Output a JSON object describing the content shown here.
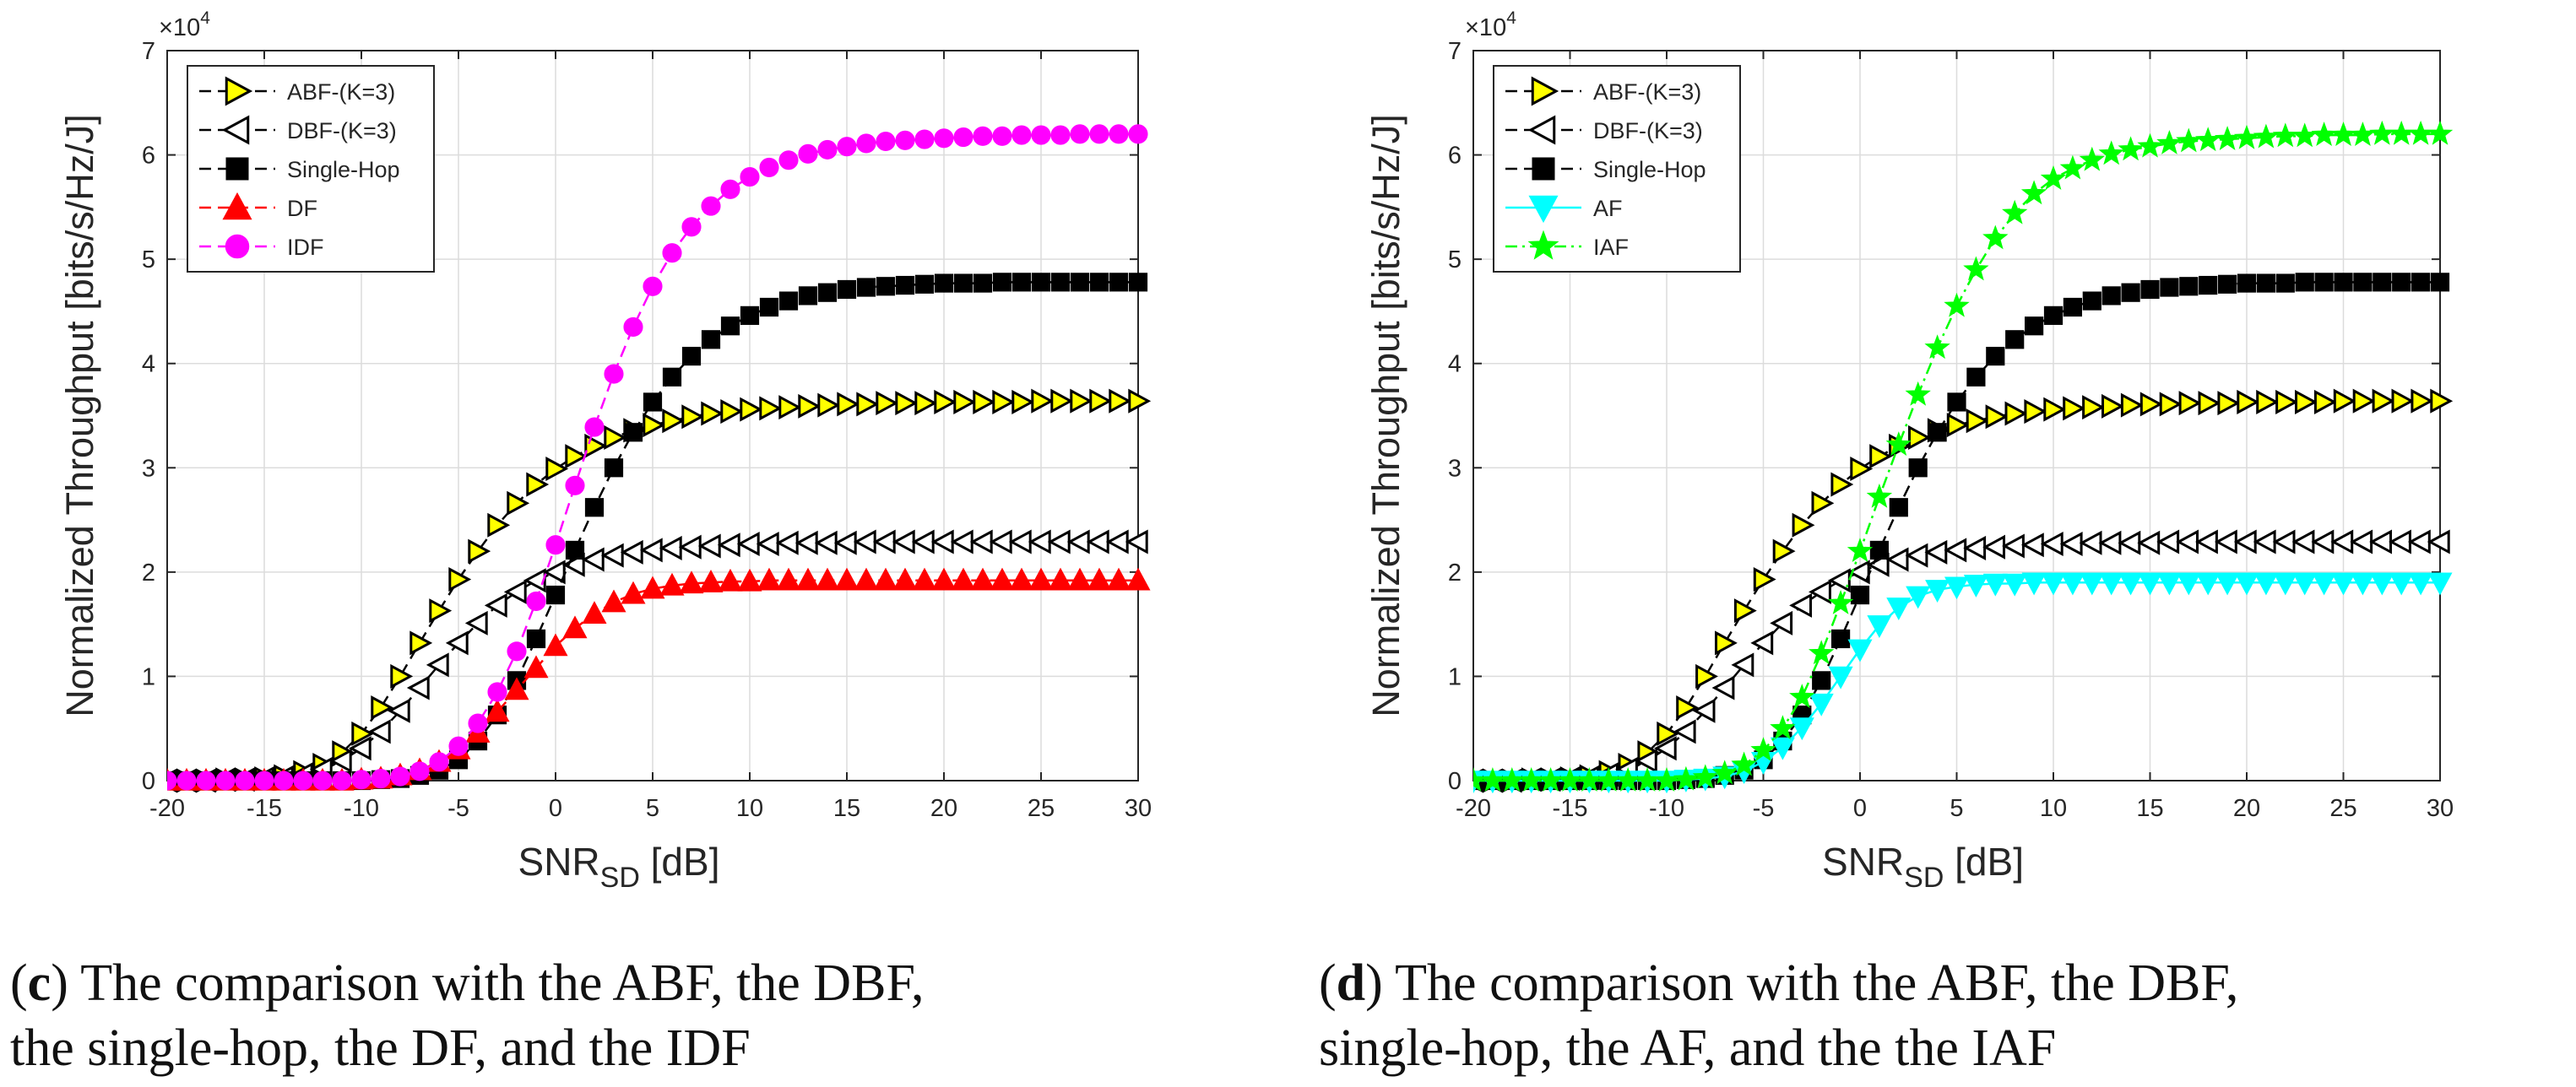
{
  "chart_data": [
    {
      "type": "line",
      "id": "c",
      "title": "",
      "xlabel_main": "SNR",
      "xlabel_sub": "SD",
      "xlabel_unit": "[dB]",
      "ylabel": "Normalized Throughput [bits/s/Hz/J]",
      "y_exponent_base": "×10",
      "y_exponent_power": "4",
      "xlim": [
        -20,
        30
      ],
      "ylim": [
        0,
        7
      ],
      "xticks": [
        "-20",
        "-15",
        "-10",
        "-5",
        "0",
        "5",
        "10",
        "15",
        "20",
        "25",
        "30"
      ],
      "yticks": [
        "0",
        "1",
        "2",
        "3",
        "4",
        "5",
        "6",
        "7"
      ],
      "grid": true,
      "legend_position": "top-left",
      "x": [
        -20,
        -19,
        -18,
        -17,
        -16,
        -15,
        -14,
        -13,
        -12,
        -11,
        -10,
        -9,
        -8,
        -7,
        -6,
        -5,
        -4,
        -3,
        -2,
        -1,
        0,
        1,
        2,
        3,
        4,
        5,
        6,
        7,
        8,
        9,
        10,
        11,
        12,
        13,
        14,
        15,
        16,
        17,
        18,
        19,
        20,
        21,
        22,
        23,
        24,
        25,
        26,
        27,
        28,
        29,
        30
      ],
      "series": [
        {
          "name": "ABF-(K=3)",
          "marker": "triangle-right",
          "color": "#ffff00",
          "line": "dash",
          "values": [
            0.0,
            0.0,
            0.0,
            0.01,
            0.01,
            0.02,
            0.04,
            0.08,
            0.15,
            0.27,
            0.45,
            0.7,
            1.0,
            1.32,
            1.63,
            1.93,
            2.2,
            2.45,
            2.66,
            2.84,
            2.99,
            3.11,
            3.21,
            3.29,
            3.36,
            3.41,
            3.45,
            3.49,
            3.52,
            3.54,
            3.56,
            3.57,
            3.58,
            3.59,
            3.6,
            3.61,
            3.61,
            3.62,
            3.62,
            3.62,
            3.63,
            3.63,
            3.63,
            3.63,
            3.63,
            3.64,
            3.64,
            3.64,
            3.64,
            3.64,
            3.64
          ]
        },
        {
          "name": "DBF-(K=3)",
          "marker": "triangle-left",
          "color": "#ffffff",
          "line": "dash",
          "values": [
            0.0,
            0.0,
            0.0,
            0.01,
            0.01,
            0.02,
            0.03,
            0.06,
            0.11,
            0.19,
            0.31,
            0.47,
            0.67,
            0.89,
            1.11,
            1.32,
            1.51,
            1.68,
            1.81,
            1.92,
            2.0,
            2.07,
            2.12,
            2.16,
            2.19,
            2.21,
            2.23,
            2.24,
            2.25,
            2.26,
            2.27,
            2.27,
            2.28,
            2.28,
            2.28,
            2.28,
            2.29,
            2.29,
            2.29,
            2.29,
            2.29,
            2.29,
            2.29,
            2.29,
            2.29,
            2.29,
            2.29,
            2.29,
            2.29,
            2.29,
            2.29
          ]
        },
        {
          "name": "Single-Hop",
          "marker": "square",
          "color": "#000000",
          "line": "dash",
          "values": [
            0.0,
            0.0,
            0.0,
            0.0,
            0.0,
            0.0,
            0.0,
            0.0,
            0.0,
            0.0,
            0.0,
            0.01,
            0.02,
            0.05,
            0.1,
            0.2,
            0.38,
            0.63,
            0.96,
            1.36,
            1.78,
            2.21,
            2.62,
            3.0,
            3.34,
            3.63,
            3.87,
            4.07,
            4.23,
            4.36,
            4.46,
            4.54,
            4.6,
            4.65,
            4.68,
            4.71,
            4.73,
            4.74,
            4.75,
            4.76,
            4.77,
            4.77,
            4.77,
            4.78,
            4.78,
            4.78,
            4.78,
            4.78,
            4.78,
            4.78,
            4.78
          ]
        },
        {
          "name": "DF",
          "marker": "triangle-up",
          "color": "#ff0000",
          "line": "dash",
          "values": [
            0.0,
            0.0,
            0.0,
            0.0,
            0.0,
            0.0,
            0.0,
            0.0,
            0.0,
            0.0,
            0.01,
            0.02,
            0.05,
            0.1,
            0.18,
            0.3,
            0.46,
            0.66,
            0.87,
            1.08,
            1.29,
            1.46,
            1.6,
            1.71,
            1.79,
            1.84,
            1.87,
            1.89,
            1.9,
            1.91,
            1.91,
            1.92,
            1.92,
            1.92,
            1.92,
            1.92,
            1.92,
            1.92,
            1.92,
            1.92,
            1.92,
            1.92,
            1.92,
            1.92,
            1.92,
            1.92,
            1.92,
            1.92,
            1.92,
            1.92,
            1.92
          ]
        },
        {
          "name": "IDF",
          "marker": "circle",
          "color": "#ff00ff",
          "line": "dash",
          "values": [
            0.0,
            0.0,
            0.0,
            0.0,
            0.0,
            0.0,
            0.0,
            0.0,
            0.0,
            0.0,
            0.01,
            0.02,
            0.04,
            0.09,
            0.18,
            0.33,
            0.55,
            0.85,
            1.24,
            1.72,
            2.26,
            2.83,
            3.39,
            3.9,
            4.35,
            4.74,
            5.06,
            5.31,
            5.51,
            5.67,
            5.79,
            5.88,
            5.95,
            6.01,
            6.05,
            6.08,
            6.11,
            6.13,
            6.14,
            6.15,
            6.16,
            6.17,
            6.18,
            6.18,
            6.19,
            6.19,
            6.19,
            6.2,
            6.2,
            6.2,
            6.2
          ]
        }
      ],
      "caption_label": "c",
      "caption_text_line1": "The comparison with the ABF, the DBF,",
      "caption_text_line2": "the single-hop, the DF, and the IDF"
    },
    {
      "type": "line",
      "id": "d",
      "title": "",
      "xlabel_main": "SNR",
      "xlabel_sub": "SD",
      "xlabel_unit": "[dB]",
      "ylabel": "Normalized Throughput [bits/s/Hz/J]",
      "y_exponent_base": "×10",
      "y_exponent_power": "4",
      "xlim": [
        -20,
        30
      ],
      "ylim": [
        0,
        7
      ],
      "xticks": [
        "-20",
        "-15",
        "-10",
        "-5",
        "0",
        "5",
        "10",
        "15",
        "20",
        "25",
        "30"
      ],
      "yticks": [
        "0",
        "1",
        "2",
        "3",
        "4",
        "5",
        "6",
        "7"
      ],
      "grid": true,
      "legend_position": "top-left",
      "x": [
        -20,
        -19,
        -18,
        -17,
        -16,
        -15,
        -14,
        -13,
        -12,
        -11,
        -10,
        -9,
        -8,
        -7,
        -6,
        -5,
        -4,
        -3,
        -2,
        -1,
        0,
        1,
        2,
        3,
        4,
        5,
        6,
        7,
        8,
        9,
        10,
        11,
        12,
        13,
        14,
        15,
        16,
        17,
        18,
        19,
        20,
        21,
        22,
        23,
        24,
        25,
        26,
        27,
        28,
        29,
        30
      ],
      "series": [
        {
          "name": "ABF-(K=3)",
          "marker": "triangle-right",
          "color": "#ffff00",
          "line": "dash",
          "values": [
            0.0,
            0.0,
            0.0,
            0.01,
            0.01,
            0.02,
            0.04,
            0.08,
            0.15,
            0.27,
            0.45,
            0.7,
            1.0,
            1.32,
            1.63,
            1.93,
            2.2,
            2.45,
            2.66,
            2.84,
            2.99,
            3.11,
            3.21,
            3.29,
            3.36,
            3.41,
            3.45,
            3.49,
            3.52,
            3.54,
            3.56,
            3.57,
            3.58,
            3.59,
            3.6,
            3.61,
            3.61,
            3.62,
            3.62,
            3.62,
            3.63,
            3.63,
            3.63,
            3.63,
            3.63,
            3.64,
            3.64,
            3.64,
            3.64,
            3.64,
            3.64
          ]
        },
        {
          "name": "DBF-(K=3)",
          "marker": "triangle-left",
          "color": "#ffffff",
          "line": "dash",
          "values": [
            0.0,
            0.0,
            0.0,
            0.01,
            0.01,
            0.02,
            0.03,
            0.06,
            0.11,
            0.19,
            0.31,
            0.47,
            0.67,
            0.89,
            1.11,
            1.32,
            1.51,
            1.68,
            1.81,
            1.92,
            2.0,
            2.07,
            2.12,
            2.16,
            2.19,
            2.21,
            2.23,
            2.24,
            2.25,
            2.26,
            2.27,
            2.27,
            2.28,
            2.28,
            2.28,
            2.28,
            2.29,
            2.29,
            2.29,
            2.29,
            2.29,
            2.29,
            2.29,
            2.29,
            2.29,
            2.29,
            2.29,
            2.29,
            2.29,
            2.29,
            2.29
          ]
        },
        {
          "name": "Single-Hop",
          "marker": "square",
          "color": "#000000",
          "line": "dash",
          "values": [
            0.0,
            0.0,
            0.0,
            0.0,
            0.0,
            0.0,
            0.0,
            0.0,
            0.0,
            0.0,
            0.0,
            0.01,
            0.02,
            0.05,
            0.1,
            0.2,
            0.38,
            0.63,
            0.96,
            1.36,
            1.78,
            2.21,
            2.62,
            3.0,
            3.34,
            3.63,
            3.87,
            4.07,
            4.23,
            4.36,
            4.46,
            4.54,
            4.6,
            4.65,
            4.68,
            4.71,
            4.73,
            4.74,
            4.75,
            4.76,
            4.77,
            4.77,
            4.77,
            4.78,
            4.78,
            4.78,
            4.78,
            4.78,
            4.78,
            4.78,
            4.78
          ]
        },
        {
          "name": "AF",
          "marker": "triangle-down",
          "color": "#00ffff",
          "line": "solid",
          "values": [
            0.0,
            0.0,
            0.0,
            0.0,
            0.0,
            0.0,
            0.0,
            0.0,
            0.0,
            0.0,
            0.0,
            0.01,
            0.02,
            0.04,
            0.09,
            0.18,
            0.32,
            0.51,
            0.74,
            1.0,
            1.26,
            1.49,
            1.66,
            1.77,
            1.83,
            1.86,
            1.88,
            1.89,
            1.89,
            1.9,
            1.9,
            1.9,
            1.9,
            1.9,
            1.9,
            1.9,
            1.9,
            1.9,
            1.9,
            1.9,
            1.9,
            1.9,
            1.9,
            1.9,
            1.9,
            1.9,
            1.9,
            1.9,
            1.9,
            1.9,
            1.9
          ]
        },
        {
          "name": "IAF",
          "marker": "star",
          "color": "#00ff00",
          "line": "dashdot",
          "values": [
            0.0,
            0.0,
            0.0,
            0.0,
            0.0,
            0.0,
            0.0,
            0.0,
            0.0,
            0.0,
            0.0,
            0.01,
            0.03,
            0.07,
            0.15,
            0.29,
            0.5,
            0.8,
            1.22,
            1.7,
            2.2,
            2.72,
            3.22,
            3.7,
            4.15,
            4.55,
            4.9,
            5.2,
            5.44,
            5.63,
            5.77,
            5.87,
            5.95,
            6.01,
            6.05,
            6.08,
            6.11,
            6.13,
            6.14,
            6.15,
            6.16,
            6.17,
            6.18,
            6.18,
            6.19,
            6.19,
            6.19,
            6.2,
            6.2,
            6.2,
            6.2
          ]
        }
      ],
      "caption_label": "d",
      "caption_text_line1": "The comparison with the ABF, the DBF,",
      "caption_text_line2": "single-hop, the AF, and the the IAF"
    }
  ]
}
